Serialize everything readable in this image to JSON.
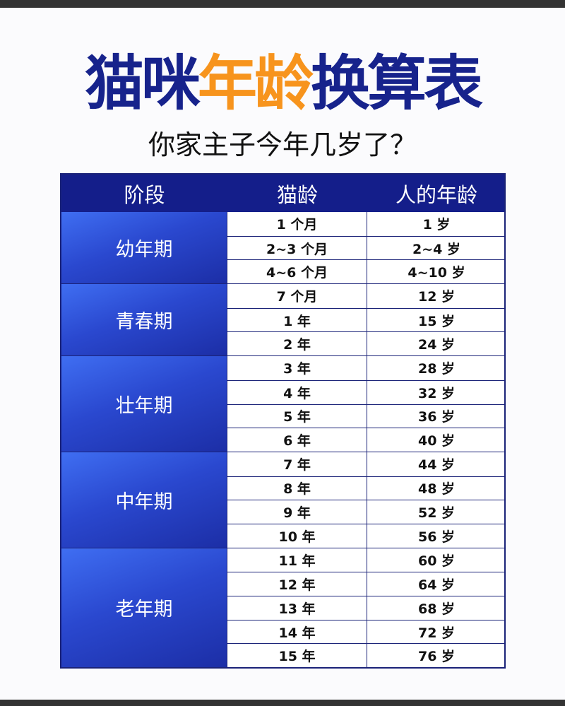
{
  "title": {
    "part1": "猫咪",
    "part2": "年龄",
    "part3": "换算表"
  },
  "subtitle": "你家主子今年几岁了？",
  "colors": {
    "title_blue": "#17238c",
    "title_orange": "#f7941d",
    "header_bg": "#141e8a"
  },
  "table": {
    "headers": [
      "阶段",
      "猫龄",
      "人的年龄"
    ],
    "groups": [
      {
        "stage": "幼年期",
        "rows": [
          [
            "1 个月",
            "1 岁"
          ],
          [
            "2~3 个月",
            "2~4 岁"
          ],
          [
            "4~6 个月",
            "4~10 岁"
          ]
        ]
      },
      {
        "stage": "青春期",
        "rows": [
          [
            "7 个月",
            "12 岁"
          ],
          [
            "1 年",
            "15 岁"
          ],
          [
            "2 年",
            "24 岁"
          ]
        ]
      },
      {
        "stage": "壮年期",
        "rows": [
          [
            "3 年",
            "28 岁"
          ],
          [
            "4 年",
            "32 岁"
          ],
          [
            "5 年",
            "36 岁"
          ],
          [
            "6 年",
            "40 岁"
          ]
        ]
      },
      {
        "stage": "中年期",
        "rows": [
          [
            "7 年",
            "44 岁"
          ],
          [
            "8 年",
            "48 岁"
          ],
          [
            "9 年",
            "52 岁"
          ],
          [
            "10 年",
            "56 岁"
          ]
        ]
      },
      {
        "stage": "老年期",
        "rows": [
          [
            "11 年",
            "60 岁"
          ],
          [
            "12 年",
            "64 岁"
          ],
          [
            "13 年",
            "68 岁"
          ],
          [
            "14 年",
            "72 岁"
          ],
          [
            "15 年",
            "76 岁"
          ]
        ]
      }
    ]
  }
}
